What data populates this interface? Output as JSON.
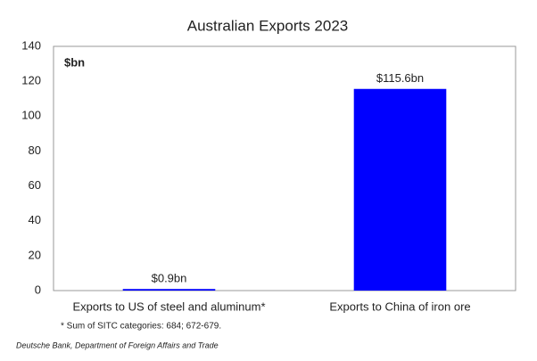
{
  "chart_data": {
    "type": "bar",
    "title": "Australian Exports 2023",
    "unit_label": "$bn",
    "categories": [
      "Exports to US of steel and aluminum*",
      "Exports to China of iron ore"
    ],
    "values": [
      0.9,
      115.6
    ],
    "value_labels": [
      "$0.9bn",
      "$115.6bn"
    ],
    "color": "#0000ff",
    "ylim": [
      0,
      140
    ],
    "yticks": [
      0,
      20,
      40,
      60,
      80,
      100,
      120,
      140
    ],
    "grid": false,
    "footnote": "* Sum of SITC categories: 684; 672-679.",
    "source": "Deutsche Bank, Department of Foreign Affairs and Trade"
  }
}
